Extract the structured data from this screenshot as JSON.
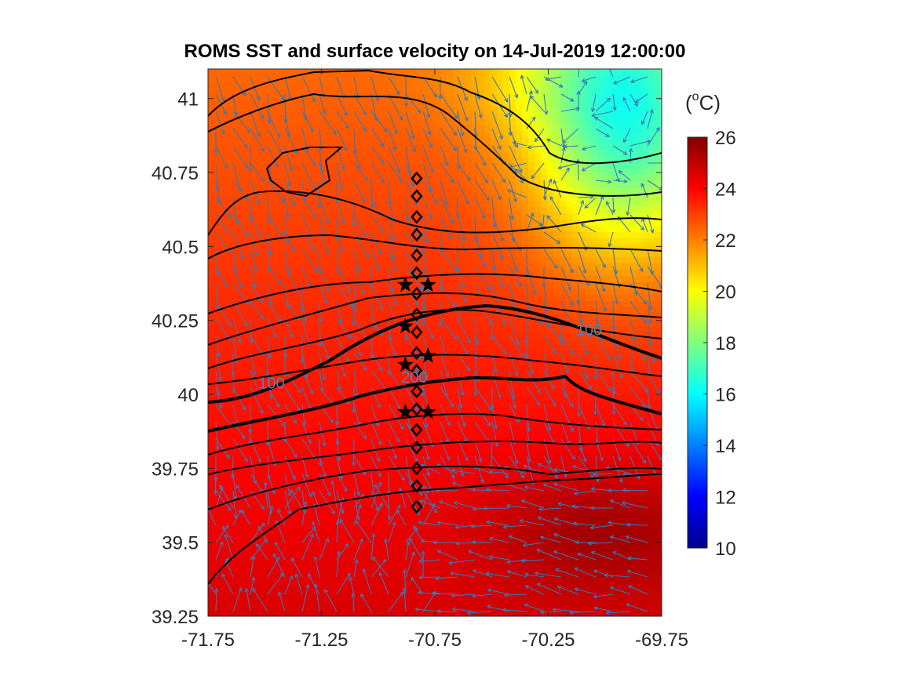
{
  "title": "ROMS SST and surface velocity on 14-Jul-2019 12:00:00",
  "colorbar": {
    "unit_base": "(",
    "unit_sup": "o",
    "unit_end": "C)",
    "min": 10,
    "max": 26,
    "ticks": [
      10,
      12,
      14,
      16,
      18,
      20,
      22,
      24,
      26
    ],
    "colormap": "jet"
  },
  "axes": {
    "xlim": [
      -71.75,
      -69.75
    ],
    "ylim": [
      39.25,
      41.1
    ],
    "xticks": [
      -71.75,
      -71.25,
      -70.75,
      -70.25,
      -69.75
    ],
    "xtick_labels": [
      "-71.75",
      "-71.25",
      "-70.75",
      "-70.25",
      "-69.75"
    ],
    "yticks": [
      39.25,
      39.5,
      39.75,
      40,
      40.25,
      40.5,
      40.75,
      41
    ],
    "ytick_labels": [
      "39.25",
      "39.5",
      "39.75",
      "40",
      "40.25",
      "40.5",
      "40.75",
      "41"
    ]
  },
  "contour_labels": [
    {
      "text": "100",
      "lon": -70.07,
      "lat": 40.2
    },
    {
      "text": "200",
      "lon": -70.84,
      "lat": 40.04
    },
    {
      "text": "100",
      "lon": -71.47,
      "lat": 40.02
    }
  ],
  "colors": {
    "contour": "#000000",
    "vector": "#3a78b5",
    "marker": "#000000"
  },
  "markers": {
    "diamonds": [
      {
        "lon": -70.83,
        "lat": 40.73
      },
      {
        "lon": -70.83,
        "lat": 40.67
      },
      {
        "lon": -70.83,
        "lat": 40.6
      },
      {
        "lon": -70.83,
        "lat": 40.54
      },
      {
        "lon": -70.83,
        "lat": 40.47
      },
      {
        "lon": -70.83,
        "lat": 40.41
      },
      {
        "lon": -70.83,
        "lat": 40.34
      },
      {
        "lon": -70.83,
        "lat": 40.27
      },
      {
        "lon": -70.83,
        "lat": 40.21
      },
      {
        "lon": -70.83,
        "lat": 40.14
      },
      {
        "lon": -70.83,
        "lat": 40.08
      },
      {
        "lon": -70.83,
        "lat": 40.01
      },
      {
        "lon": -70.83,
        "lat": 39.95
      },
      {
        "lon": -70.83,
        "lat": 39.88
      },
      {
        "lon": -70.83,
        "lat": 39.82
      },
      {
        "lon": -70.83,
        "lat": 39.75
      },
      {
        "lon": -70.83,
        "lat": 39.69
      },
      {
        "lon": -70.83,
        "lat": 39.62
      }
    ],
    "stars": [
      {
        "lon": -70.88,
        "lat": 40.37
      },
      {
        "lon": -70.78,
        "lat": 40.37
      },
      {
        "lon": -70.88,
        "lat": 40.23
      },
      {
        "lon": -70.78,
        "lat": 40.13
      },
      {
        "lon": -70.88,
        "lat": 40.1
      },
      {
        "lon": -70.88,
        "lat": 39.94
      },
      {
        "lon": -70.78,
        "lat": 39.94
      }
    ]
  }
}
